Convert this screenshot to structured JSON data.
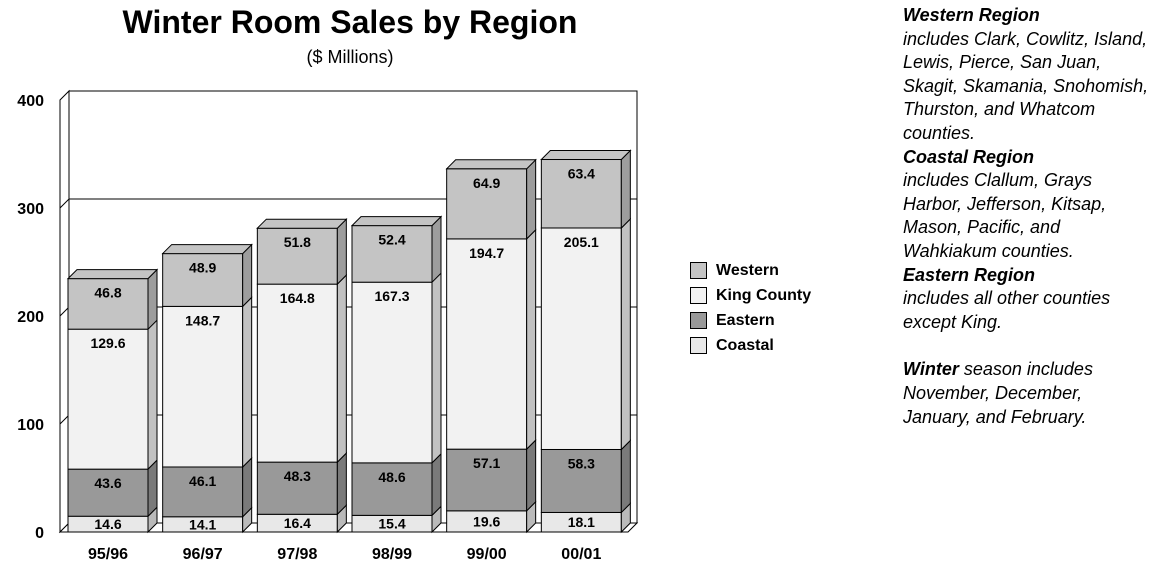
{
  "chart_data": {
    "type": "bar",
    "stacked": true,
    "title": "Winter Room Sales by Region",
    "subtitle": "($ Millions)",
    "categories": [
      "95/96",
      "96/97",
      "97/98",
      "98/99",
      "99/00",
      "00/01"
    ],
    "series": [
      {
        "name": "Coastal",
        "values": [
          14.6,
          14.1,
          16.4,
          15.4,
          19.6,
          18.1
        ],
        "color": "#e8e8e8"
      },
      {
        "name": "Eastern",
        "values": [
          43.6,
          46.1,
          48.3,
          48.6,
          57.1,
          58.3
        ],
        "color": "#999999"
      },
      {
        "name": "King County",
        "values": [
          129.6,
          148.7,
          164.8,
          167.3,
          194.7,
          205.1
        ],
        "color": "#f2f2f2"
      },
      {
        "name": "Western",
        "values": [
          46.8,
          48.9,
          51.8,
          52.4,
          64.9,
          63.4
        ],
        "color": "#c4c4c4"
      }
    ],
    "yticks": [
      0,
      100,
      200,
      300,
      400
    ],
    "ylim": [
      0,
      400
    ],
    "grid": true,
    "legend_position": "right"
  },
  "legend": [
    {
      "label": "Western",
      "color": "#c4c4c4"
    },
    {
      "label": "King County",
      "color": "#f2f2f2"
    },
    {
      "label": "Eastern",
      "color": "#999999"
    },
    {
      "label": "Coastal",
      "color": "#e8e8e8"
    }
  ],
  "notes": {
    "western_title": "Western Region",
    "western_text": "includes Clark, Cowlitz, Island, Lewis, Pierce, San Juan, Skagit, Skamania, Snohomish, Thurston, and Whatcom counties.",
    "coastal_title": "Coastal Region",
    "coastal_text": "includes Clallum, Grays Harbor, Jefferson, Kitsap, Mason, Pacific, and Wahkiakum counties.",
    "eastern_title": "Eastern  Region",
    "eastern_text": "includes all other counties except King.",
    "winter_title": "Winter",
    "winter_text": "season includes November, December, January, and February."
  }
}
